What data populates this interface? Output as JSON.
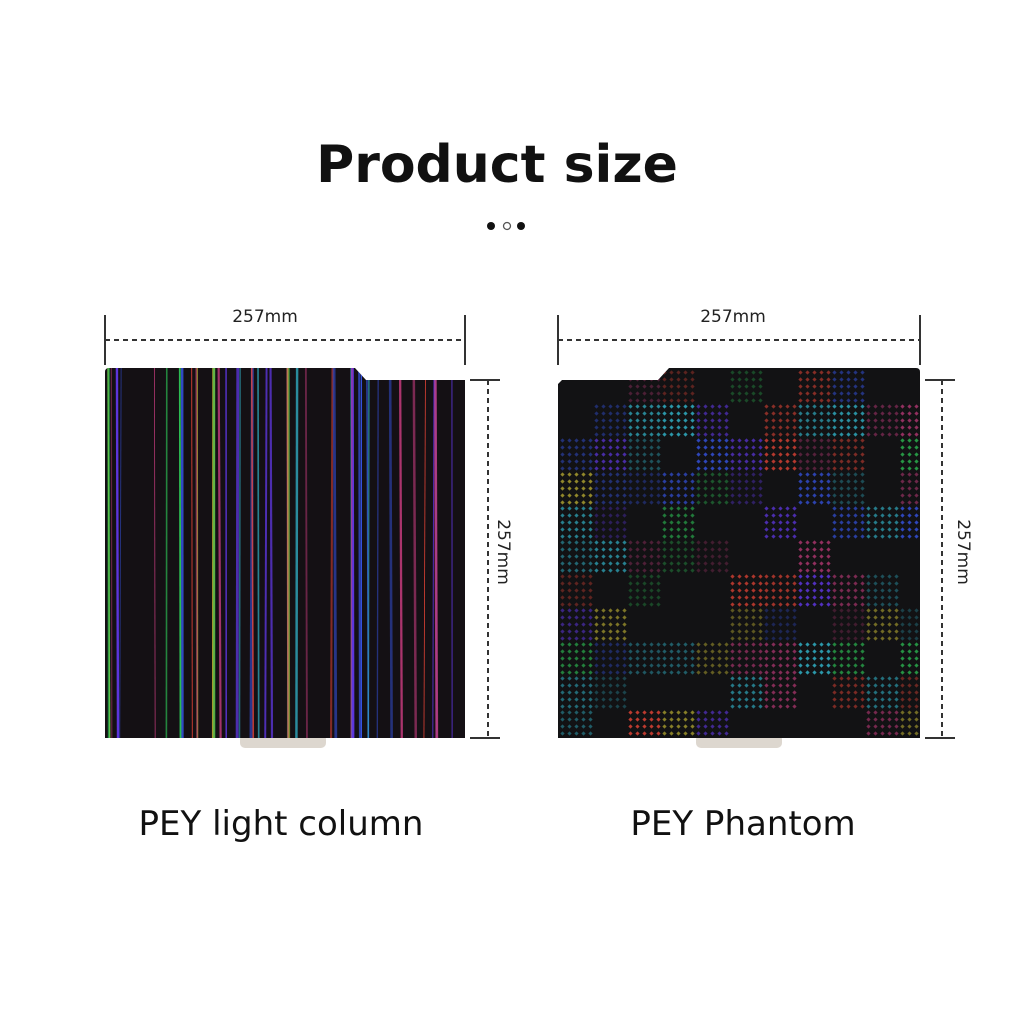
{
  "title": "Product size",
  "products": [
    {
      "width": "257mm",
      "height": "257mm",
      "name": "PEY light column"
    },
    {
      "width": "257mm",
      "height": "257mm",
      "name": "PEY Phantom"
    }
  ]
}
